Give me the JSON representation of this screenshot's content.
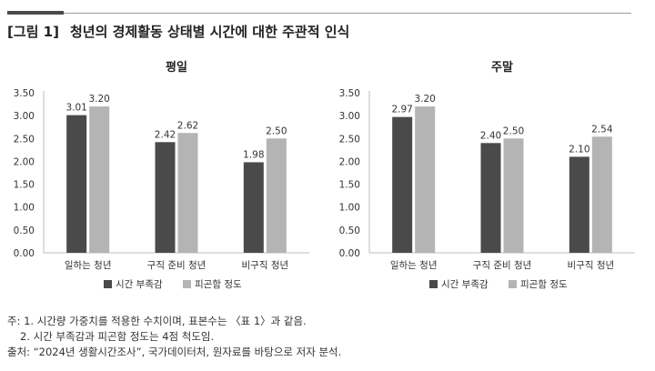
{
  "figure": {
    "label": "[그림 1]",
    "title": "청년의 경제활동 상태별 시간에 대한 주관적 인식"
  },
  "colors": {
    "series1": "#4a4a4a",
    "series2": "#b4b4b4",
    "axis": "#bdbdbd"
  },
  "chart_data": [
    {
      "type": "bar",
      "title": "평일",
      "categories": [
        "일하는 청년",
        "구직 준비 청년",
        "비구직 청년"
      ],
      "series": [
        {
          "name": "시간 부족감",
          "values": [
            3.01,
            2.42,
            1.98
          ]
        },
        {
          "name": "피곤함 정도",
          "values": [
            3.2,
            2.62,
            2.5
          ]
        }
      ],
      "value_labels": [
        [
          "3.01",
          "2.42",
          "1.98"
        ],
        [
          "3.20",
          "2.62",
          "2.50"
        ]
      ],
      "yticks": [
        "0.00",
        "0.50",
        "1.00",
        "1.50",
        "2.00",
        "2.50",
        "3.00",
        "3.50"
      ],
      "ylim": [
        0,
        3.5
      ],
      "grid": false,
      "legend": "bottom"
    },
    {
      "type": "bar",
      "title": "주말",
      "categories": [
        "일하는 청년",
        "구직 준비 청년",
        "비구직 청년"
      ],
      "series": [
        {
          "name": "시간 부족감",
          "values": [
            2.97,
            2.4,
            2.1
          ]
        },
        {
          "name": "피곤함 정도",
          "values": [
            3.2,
            2.5,
            2.54
          ]
        }
      ],
      "value_labels": [
        [
          "2.97",
          "2.40",
          "2.10"
        ],
        [
          "3.20",
          "2.50",
          "2.54"
        ]
      ],
      "yticks": [
        "0.00",
        "0.50",
        "1.00",
        "1.50",
        "2.00",
        "2.50",
        "3.00",
        "3.50"
      ],
      "ylim": [
        0,
        3.5
      ],
      "grid": false,
      "legend": "bottom"
    }
  ],
  "notes": {
    "note1": "주: 1. 시간량 가중치를 적용한 수치이며, 표본수는 〈표 1〉과 같음.",
    "note2": "2. 시간 부족감과 피곤함 정도는 4점 척도임.",
    "source": "출처: “2024년 생활시간조사”, 국가데이터처, 원자료를 바탕으로 저자 분석."
  }
}
